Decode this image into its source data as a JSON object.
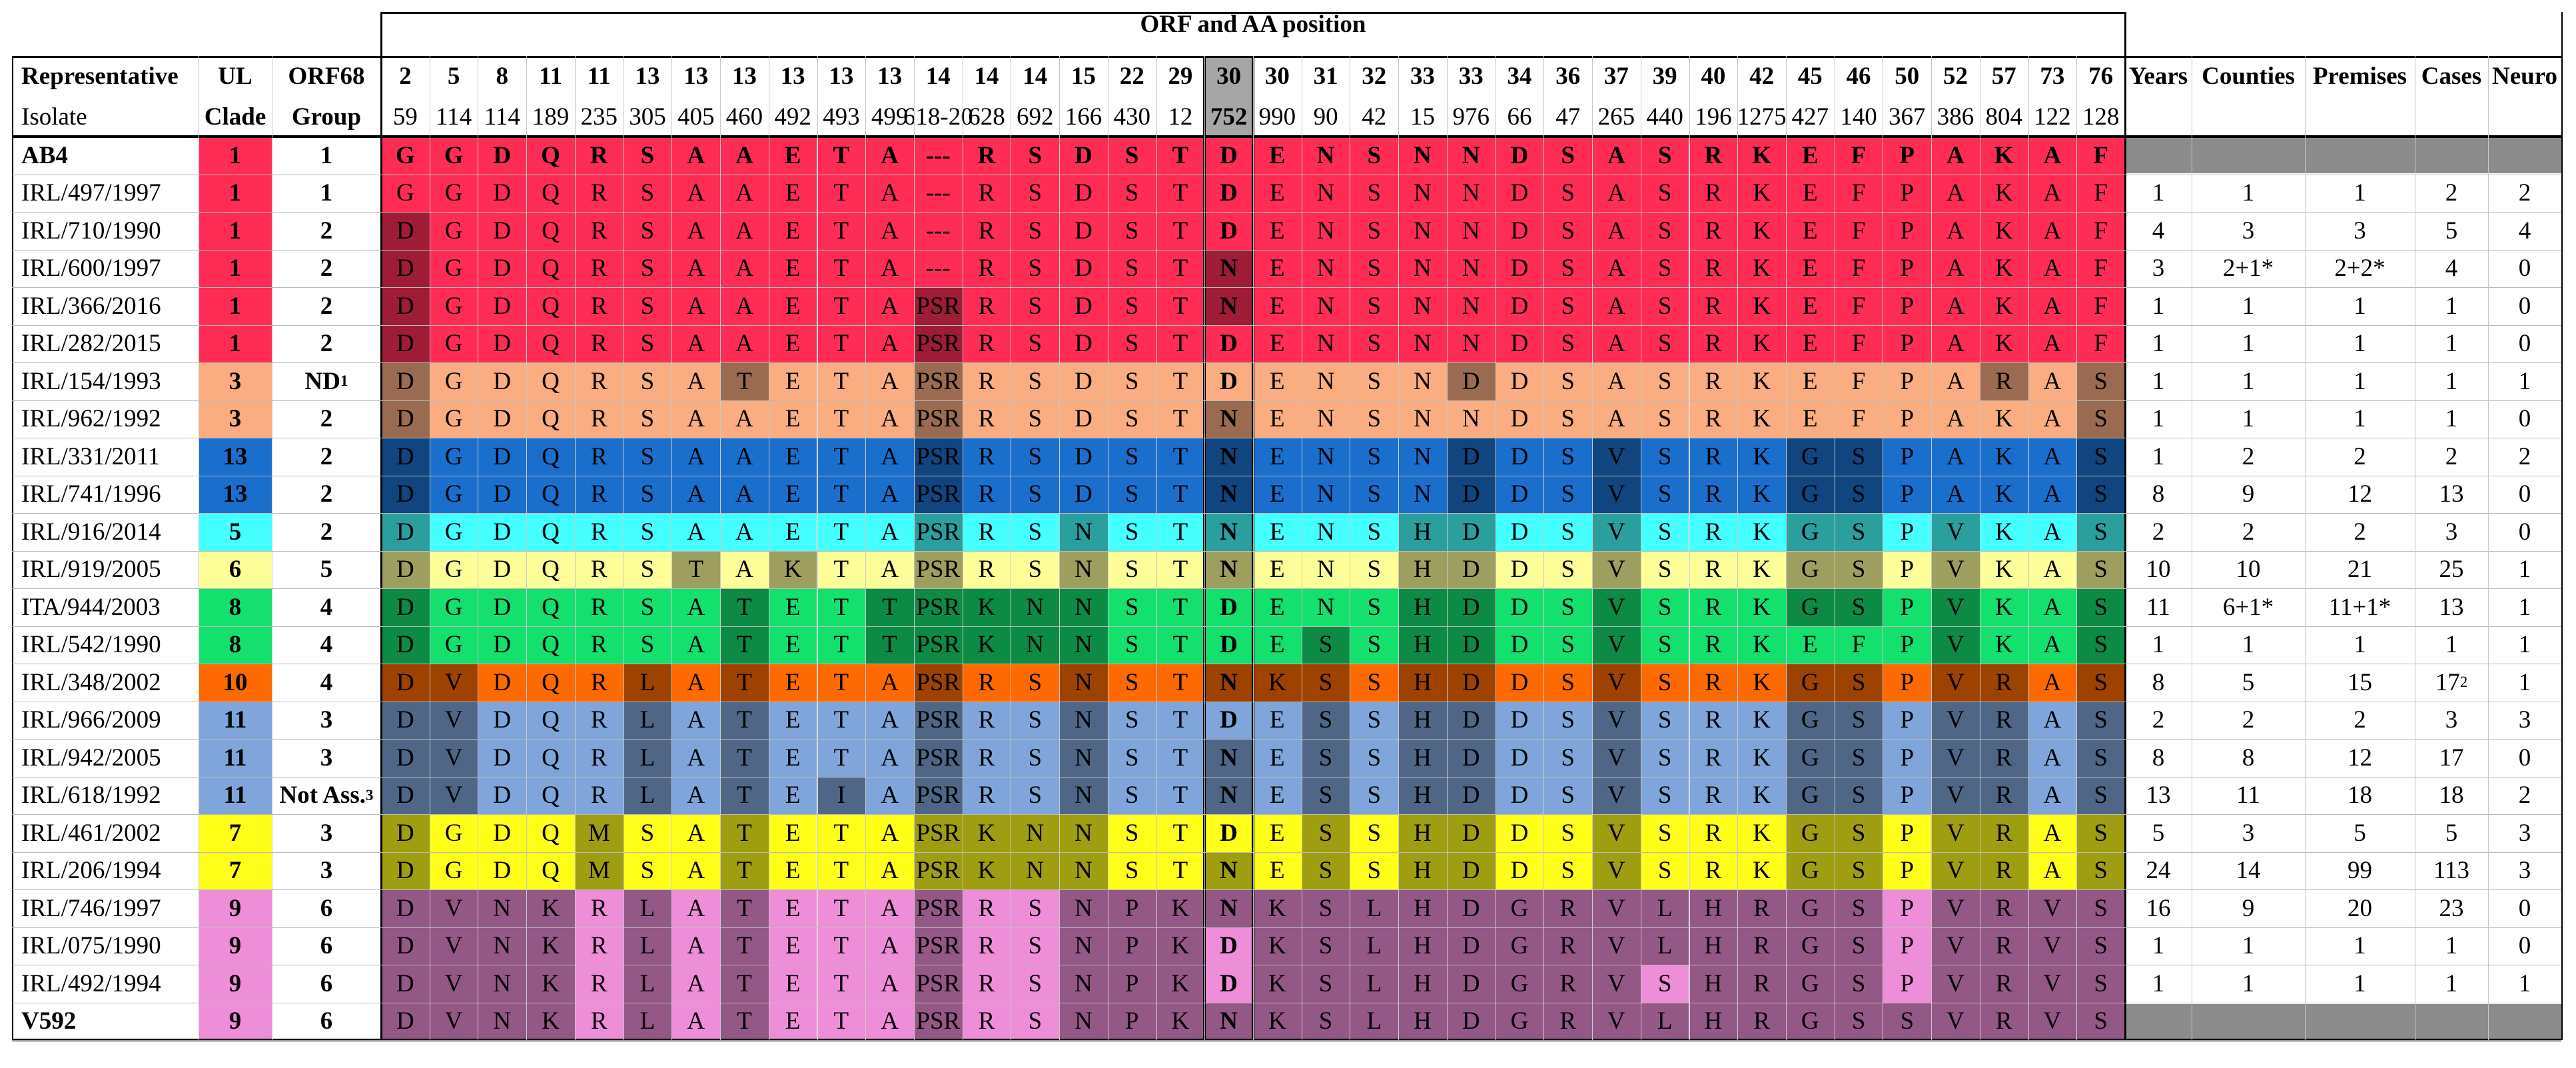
{
  "header": {
    "title": "ORF and AA position",
    "rep1": "Representative",
    "rep2": "Isolate",
    "ul1": "UL",
    "ul2": "Clade",
    "orf1": "ORF68",
    "orf2": "Group",
    "years": "Years",
    "counties": "Counties",
    "premises": "Premises",
    "cases": "Cases",
    "neuro": "Neuro"
  },
  "orf_numbers": [
    "2",
    "5",
    "8",
    "11",
    "11",
    "13",
    "13",
    "13",
    "13",
    "13",
    "13",
    "14",
    "14",
    "14",
    "15",
    "22",
    "29",
    "30",
    "30",
    "31",
    "32",
    "33",
    "33",
    "34",
    "36",
    "37",
    "39",
    "40",
    "42",
    "45",
    "46",
    "50",
    "52",
    "57",
    "73",
    "76"
  ],
  "aa_positions": [
    "59",
    "114",
    "114",
    "189",
    "235",
    "305",
    "405",
    "460",
    "492",
    "493",
    "499",
    "618-20",
    "628",
    "692",
    "166",
    "430",
    "12",
    "752",
    "990",
    "90",
    "42",
    "15",
    "976",
    "66",
    "47",
    "265",
    "440",
    "196",
    "1275",
    "427",
    "140",
    "367",
    "386",
    "804",
    "122",
    "128"
  ],
  "clade_colors": {
    "1": "#ff2d55",
    "3": "#f9ad81",
    "13": "#1a6fcd",
    "5": "#46ffff",
    "6": "#ffff99",
    "8": "#14e06e",
    "10": "#ff6a00",
    "11": "#7fa5da",
    "7": "#ffff1a",
    "9": "#ef8ed8"
  },
  "rows": [
    {
      "isolate": "AB4",
      "clade": "1",
      "group": "1",
      "aa": [
        "G",
        "G",
        "D",
        "Q",
        "R",
        "S",
        "A",
        "A",
        "E",
        "T",
        "A",
        "---",
        "R",
        "S",
        "D",
        "S",
        "T",
        "D",
        "E",
        "N",
        "S",
        "N",
        "N",
        "D",
        "S",
        "A",
        "S",
        "R",
        "K",
        "E",
        "F",
        "P",
        "A",
        "K",
        "A",
        "F"
      ],
      "stats": [
        "",
        "",
        "",
        "",
        ""
      ]
    },
    {
      "isolate": "IRL/497/1997",
      "clade": "1",
      "group": "1",
      "aa": [
        "G",
        "G",
        "D",
        "Q",
        "R",
        "S",
        "A",
        "A",
        "E",
        "T",
        "A",
        "---",
        "R",
        "S",
        "D",
        "S",
        "T",
        "D",
        "E",
        "N",
        "S",
        "N",
        "N",
        "D",
        "S",
        "A",
        "S",
        "R",
        "K",
        "E",
        "F",
        "P",
        "A",
        "K",
        "A",
        "F"
      ],
      "stats": [
        "1",
        "1",
        "1",
        "2",
        "2"
      ]
    },
    {
      "isolate": "IRL/710/1990",
      "clade": "1",
      "group": "2",
      "aa": [
        "D",
        "G",
        "D",
        "Q",
        "R",
        "S",
        "A",
        "A",
        "E",
        "T",
        "A",
        "---",
        "R",
        "S",
        "D",
        "S",
        "T",
        "D",
        "E",
        "N",
        "S",
        "N",
        "N",
        "D",
        "S",
        "A",
        "S",
        "R",
        "K",
        "E",
        "F",
        "P",
        "A",
        "K",
        "A",
        "F"
      ],
      "stats": [
        "4",
        "3",
        "3",
        "5",
        "4"
      ]
    },
    {
      "isolate": "IRL/600/1997",
      "clade": "1",
      "group": "2",
      "aa": [
        "D",
        "G",
        "D",
        "Q",
        "R",
        "S",
        "A",
        "A",
        "E",
        "T",
        "A",
        "---",
        "R",
        "S",
        "D",
        "S",
        "T",
        "N",
        "E",
        "N",
        "S",
        "N",
        "N",
        "D",
        "S",
        "A",
        "S",
        "R",
        "K",
        "E",
        "F",
        "P",
        "A",
        "K",
        "A",
        "F"
      ],
      "stats": [
        "3",
        "2+1*",
        "2+2*",
        "4",
        "0"
      ]
    },
    {
      "isolate": "IRL/366/2016",
      "clade": "1",
      "group": "2",
      "aa": [
        "D",
        "G",
        "D",
        "Q",
        "R",
        "S",
        "A",
        "A",
        "E",
        "T",
        "A",
        "PSR",
        "R",
        "S",
        "D",
        "S",
        "T",
        "N",
        "E",
        "N",
        "S",
        "N",
        "N",
        "D",
        "S",
        "A",
        "S",
        "R",
        "K",
        "E",
        "F",
        "P",
        "A",
        "K",
        "A",
        "F"
      ],
      "stats": [
        "1",
        "1",
        "1",
        "1",
        "0"
      ]
    },
    {
      "isolate": "IRL/282/2015",
      "clade": "1",
      "group": "2",
      "aa": [
        "D",
        "G",
        "D",
        "Q",
        "R",
        "S",
        "A",
        "A",
        "E",
        "T",
        "A",
        "PSR",
        "R",
        "S",
        "D",
        "S",
        "T",
        "D",
        "E",
        "N",
        "S",
        "N",
        "N",
        "D",
        "S",
        "A",
        "S",
        "R",
        "K",
        "E",
        "F",
        "P",
        "A",
        "K",
        "A",
        "F"
      ],
      "stats": [
        "1",
        "1",
        "1",
        "1",
        "0"
      ]
    },
    {
      "isolate": "IRL/154/1993",
      "clade": "3",
      "group": "ND",
      "group_sup": "1",
      "aa": [
        "D",
        "G",
        "D",
        "Q",
        "R",
        "S",
        "A",
        "T",
        "E",
        "T",
        "A",
        "PSR",
        "R",
        "S",
        "D",
        "S",
        "T",
        "D",
        "E",
        "N",
        "S",
        "N",
        "D",
        "D",
        "S",
        "A",
        "S",
        "R",
        "K",
        "E",
        "F",
        "P",
        "A",
        "R",
        "A",
        "S"
      ],
      "stats": [
        "1",
        "1",
        "1",
        "1",
        "1"
      ]
    },
    {
      "isolate": "IRL/962/1992",
      "clade": "3",
      "group": "2",
      "aa": [
        "D",
        "G",
        "D",
        "Q",
        "R",
        "S",
        "A",
        "A",
        "E",
        "T",
        "A",
        "PSR",
        "R",
        "S",
        "D",
        "S",
        "T",
        "N",
        "E",
        "N",
        "S",
        "N",
        "N",
        "D",
        "S",
        "A",
        "S",
        "R",
        "K",
        "E",
        "F",
        "P",
        "A",
        "K",
        "A",
        "S"
      ],
      "stats": [
        "1",
        "1",
        "1",
        "1",
        "0"
      ]
    },
    {
      "isolate": "IRL/331/2011",
      "clade": "13",
      "group": "2",
      "aa": [
        "D",
        "G",
        "D",
        "Q",
        "R",
        "S",
        "A",
        "A",
        "E",
        "T",
        "A",
        "PSR",
        "R",
        "S",
        "D",
        "S",
        "T",
        "N",
        "E",
        "N",
        "S",
        "N",
        "D",
        "D",
        "S",
        "V",
        "S",
        "R",
        "K",
        "G",
        "S",
        "P",
        "A",
        "K",
        "A",
        "S"
      ],
      "stats": [
        "1",
        "2",
        "2",
        "2",
        "2"
      ]
    },
    {
      "isolate": "IRL/741/1996",
      "clade": "13",
      "group": "2",
      "aa": [
        "D",
        "G",
        "D",
        "Q",
        "R",
        "S",
        "A",
        "A",
        "E",
        "T",
        "A",
        "PSR",
        "R",
        "S",
        "D",
        "S",
        "T",
        "N",
        "E",
        "N",
        "S",
        "N",
        "D",
        "D",
        "S",
        "V",
        "S",
        "R",
        "K",
        "G",
        "S",
        "P",
        "A",
        "K",
        "A",
        "S"
      ],
      "stats": [
        "8",
        "9",
        "12",
        "13",
        "0"
      ]
    },
    {
      "isolate": "IRL/916/2014",
      "clade": "5",
      "group": "2",
      "aa": [
        "D",
        "G",
        "D",
        "Q",
        "R",
        "S",
        "A",
        "A",
        "E",
        "T",
        "A",
        "PSR",
        "R",
        "S",
        "N",
        "S",
        "T",
        "N",
        "E",
        "N",
        "S",
        "H",
        "D",
        "D",
        "S",
        "V",
        "S",
        "R",
        "K",
        "G",
        "S",
        "P",
        "V",
        "K",
        "A",
        "S"
      ],
      "stats": [
        "2",
        "2",
        "2",
        "3",
        "0"
      ]
    },
    {
      "isolate": "IRL/919/2005",
      "clade": "6",
      "group": "5",
      "aa": [
        "D",
        "G",
        "D",
        "Q",
        "R",
        "S",
        "T",
        "A",
        "K",
        "T",
        "A",
        "PSR",
        "R",
        "S",
        "N",
        "S",
        "T",
        "N",
        "E",
        "N",
        "S",
        "H",
        "D",
        "D",
        "S",
        "V",
        "S",
        "R",
        "K",
        "G",
        "S",
        "P",
        "V",
        "K",
        "A",
        "S"
      ],
      "stats": [
        "10",
        "10",
        "21",
        "25",
        "1"
      ]
    },
    {
      "isolate": "ITA/944/2003",
      "clade": "8",
      "group": "4",
      "aa": [
        "D",
        "G",
        "D",
        "Q",
        "R",
        "S",
        "A",
        "T",
        "E",
        "T",
        "T",
        "PSR",
        "K",
        "N",
        "N",
        "S",
        "T",
        "D",
        "E",
        "N",
        "S",
        "H",
        "D",
        "D",
        "S",
        "V",
        "S",
        "R",
        "K",
        "G",
        "S",
        "P",
        "V",
        "K",
        "A",
        "S"
      ],
      "stats": [
        "11",
        "6+1*",
        "11+1*",
        "13",
        "1"
      ]
    },
    {
      "isolate": "IRL/542/1990",
      "clade": "8",
      "group": "4",
      "aa": [
        "D",
        "G",
        "D",
        "Q",
        "R",
        "S",
        "A",
        "T",
        "E",
        "T",
        "T",
        "PSR",
        "K",
        "N",
        "N",
        "S",
        "T",
        "D",
        "E",
        "S",
        "S",
        "H",
        "D",
        "D",
        "S",
        "V",
        "S",
        "R",
        "K",
        "E",
        "F",
        "P",
        "V",
        "K",
        "A",
        "S"
      ],
      "stats": [
        "1",
        "1",
        "1",
        "1",
        "1"
      ]
    },
    {
      "isolate": "IRL/348/2002",
      "clade": "10",
      "group": "4",
      "aa": [
        "D",
        "V",
        "D",
        "Q",
        "R",
        "L",
        "A",
        "T",
        "E",
        "T",
        "A",
        "PSR",
        "R",
        "S",
        "N",
        "S",
        "T",
        "N",
        "K",
        "S",
        "S",
        "H",
        "D",
        "D",
        "S",
        "V",
        "S",
        "R",
        "K",
        "G",
        "S",
        "P",
        "V",
        "R",
        "A",
        "S"
      ],
      "stats": [
        "8",
        "5",
        "15",
        "17",
        "1"
      ],
      "cases_sup": "2"
    },
    {
      "isolate": "IRL/966/2009",
      "clade": "11",
      "group": "3",
      "aa": [
        "D",
        "V",
        "D",
        "Q",
        "R",
        "L",
        "A",
        "T",
        "E",
        "T",
        "A",
        "PSR",
        "R",
        "S",
        "N",
        "S",
        "T",
        "D",
        "E",
        "S",
        "S",
        "H",
        "D",
        "D",
        "S",
        "V",
        "S",
        "R",
        "K",
        "G",
        "S",
        "P",
        "V",
        "R",
        "A",
        "S"
      ],
      "stats": [
        "2",
        "2",
        "2",
        "3",
        "3"
      ]
    },
    {
      "isolate": "IRL/942/2005",
      "clade": "11",
      "group": "3",
      "aa": [
        "D",
        "V",
        "D",
        "Q",
        "R",
        "L",
        "A",
        "T",
        "E",
        "T",
        "A",
        "PSR",
        "R",
        "S",
        "N",
        "S",
        "T",
        "N",
        "E",
        "S",
        "S",
        "H",
        "D",
        "D",
        "S",
        "V",
        "S",
        "R",
        "K",
        "G",
        "S",
        "P",
        "V",
        "R",
        "A",
        "S"
      ],
      "stats": [
        "8",
        "8",
        "12",
        "17",
        "0"
      ]
    },
    {
      "isolate": "IRL/618/1992",
      "clade": "11",
      "group": "Not Ass.",
      "group_sup": "3",
      "aa": [
        "D",
        "V",
        "D",
        "Q",
        "R",
        "L",
        "A",
        "T",
        "E",
        "I",
        "A",
        "PSR",
        "R",
        "S",
        "N",
        "S",
        "T",
        "N",
        "E",
        "S",
        "S",
        "H",
        "D",
        "D",
        "S",
        "V",
        "S",
        "R",
        "K",
        "G",
        "S",
        "P",
        "V",
        "R",
        "A",
        "S"
      ],
      "stats": [
        "13",
        "11",
        "18",
        "18",
        "2"
      ]
    },
    {
      "isolate": "IRL/461/2002",
      "clade": "7",
      "group": "3",
      "aa": [
        "D",
        "G",
        "D",
        "Q",
        "M",
        "S",
        "A",
        "T",
        "E",
        "T",
        "A",
        "PSR",
        "K",
        "N",
        "N",
        "S",
        "T",
        "D",
        "E",
        "S",
        "S",
        "H",
        "D",
        "D",
        "S",
        "V",
        "S",
        "R",
        "K",
        "G",
        "S",
        "P",
        "V",
        "R",
        "A",
        "S"
      ],
      "stats": [
        "5",
        "3",
        "5",
        "5",
        "3"
      ]
    },
    {
      "isolate": "IRL/206/1994",
      "clade": "7",
      "group": "3",
      "aa": [
        "D",
        "G",
        "D",
        "Q",
        "M",
        "S",
        "A",
        "T",
        "E",
        "T",
        "A",
        "PSR",
        "K",
        "N",
        "N",
        "S",
        "T",
        "N",
        "E",
        "S",
        "S",
        "H",
        "D",
        "D",
        "S",
        "V",
        "S",
        "R",
        "K",
        "G",
        "S",
        "P",
        "V",
        "R",
        "A",
        "S"
      ],
      "stats": [
        "24",
        "14",
        "99",
        "113",
        "3"
      ]
    },
    {
      "isolate": "IRL/746/1997",
      "clade": "9",
      "group": "6",
      "aa": [
        "D",
        "V",
        "N",
        "K",
        "R",
        "L",
        "A",
        "T",
        "E",
        "T",
        "A",
        "PSR",
        "R",
        "S",
        "N",
        "P",
        "K",
        "N",
        "K",
        "S",
        "L",
        "H",
        "D",
        "G",
        "R",
        "V",
        "L",
        "H",
        "R",
        "G",
        "S",
        "P",
        "V",
        "R",
        "V",
        "S"
      ],
      "stats": [
        "16",
        "9",
        "20",
        "23",
        "0"
      ]
    },
    {
      "isolate": "IRL/075/1990",
      "clade": "9",
      "group": "6",
      "aa": [
        "D",
        "V",
        "N",
        "K",
        "R",
        "L",
        "A",
        "T",
        "E",
        "T",
        "A",
        "PSR",
        "R",
        "S",
        "N",
        "P",
        "K",
        "D",
        "K",
        "S",
        "L",
        "H",
        "D",
        "G",
        "R",
        "V",
        "L",
        "H",
        "R",
        "G",
        "S",
        "P",
        "V",
        "R",
        "V",
        "S"
      ],
      "stats": [
        "1",
        "1",
        "1",
        "1",
        "0"
      ]
    },
    {
      "isolate": "IRL/492/1994",
      "clade": "9",
      "group": "6",
      "aa": [
        "D",
        "V",
        "N",
        "K",
        "R",
        "L",
        "A",
        "T",
        "E",
        "T",
        "A",
        "PSR",
        "R",
        "S",
        "N",
        "P",
        "K",
        "D",
        "K",
        "S",
        "L",
        "H",
        "D",
        "G",
        "R",
        "V",
        "S",
        "H",
        "R",
        "G",
        "S",
        "P",
        "V",
        "R",
        "V",
        "S"
      ],
      "stats": [
        "1",
        "1",
        "1",
        "1",
        "1"
      ]
    },
    {
      "isolate": "V592",
      "clade": "9",
      "group": "6",
      "aa": [
        "D",
        "V",
        "N",
        "K",
        "R",
        "L",
        "A",
        "T",
        "E",
        "T",
        "A",
        "PSR",
        "R",
        "S",
        "N",
        "P",
        "K",
        "N",
        "K",
        "S",
        "L",
        "H",
        "D",
        "G",
        "R",
        "V",
        "L",
        "H",
        "R",
        "G",
        "S",
        "S",
        "V",
        "R",
        "V",
        "S"
      ],
      "stats": [
        "",
        "",
        "",
        "",
        ""
      ]
    }
  ]
}
